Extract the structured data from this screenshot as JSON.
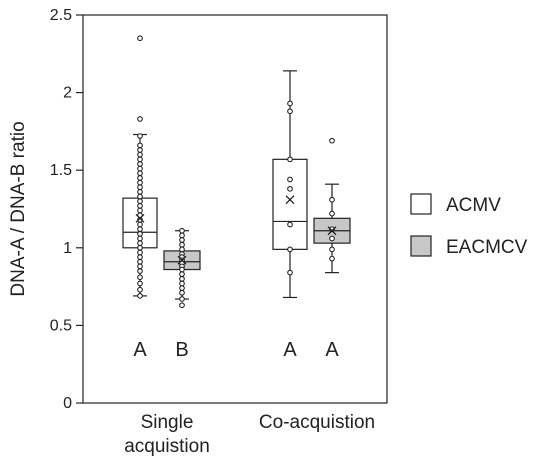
{
  "chart_data": {
    "type": "box",
    "ylabel": "DNA-A / DNA-B ratio",
    "ylim": [
      0,
      2.5
    ],
    "yticks": [
      "0",
      "0.5",
      "1",
      "1.5",
      "2",
      "2.5"
    ],
    "grid": false,
    "legend_placement": "right",
    "categories": [
      {
        "label_lines": [
          "Single",
          "acquistion"
        ]
      },
      {
        "label_lines": [
          "Co-acquistion"
        ]
      }
    ],
    "series": [
      {
        "name": "ACMV",
        "color": "#ffffff"
      },
      {
        "name": "EACMCV",
        "color": "#c8c8c8"
      }
    ],
    "boxes": [
      {
        "category": 0,
        "series": 0,
        "letter": "A",
        "whisker_low": 0.69,
        "q1": 1.0,
        "median": 1.1,
        "q3": 1.32,
        "whisker_high": 1.73,
        "mean": 1.19,
        "points": [
          2.35,
          1.83,
          1.72,
          1.66,
          1.63,
          1.6,
          1.57,
          1.54,
          1.51,
          1.48,
          1.45,
          1.42,
          1.39,
          1.36,
          1.33,
          1.3,
          1.27,
          1.24,
          1.21,
          1.18,
          1.15,
          1.12,
          1.09,
          1.06,
          1.03,
          1.0,
          0.97,
          0.94,
          0.91,
          0.88,
          0.85,
          0.81,
          0.77,
          0.73,
          0.69
        ]
      },
      {
        "category": 0,
        "series": 1,
        "letter": "B",
        "whisker_low": 0.67,
        "q1": 0.86,
        "median": 0.91,
        "q3": 0.98,
        "whisker_high": 1.11,
        "mean": 0.92,
        "points": [
          1.11,
          1.08,
          1.05,
          1.02,
          0.99,
          0.96,
          0.94,
          0.92,
          0.9,
          0.88,
          0.86,
          0.83,
          0.8,
          0.77,
          0.74,
          0.71,
          0.67,
          0.63
        ]
      },
      {
        "category": 1,
        "series": 0,
        "letter": "A",
        "whisker_low": 0.68,
        "q1": 0.99,
        "median": 1.17,
        "q3": 1.57,
        "whisker_high": 2.14,
        "mean": 1.31,
        "points": [
          1.93,
          1.88,
          1.57,
          1.44,
          1.38,
          1.15,
          0.99,
          0.84
        ]
      },
      {
        "category": 1,
        "series": 1,
        "letter": "A",
        "whisker_low": 0.84,
        "q1": 1.03,
        "median": 1.11,
        "q3": 1.19,
        "whisker_high": 1.41,
        "mean": 1.11,
        "points": [
          1.69,
          1.31,
          1.22,
          1.12,
          1.06,
          0.99,
          0.93
        ]
      }
    ]
  }
}
